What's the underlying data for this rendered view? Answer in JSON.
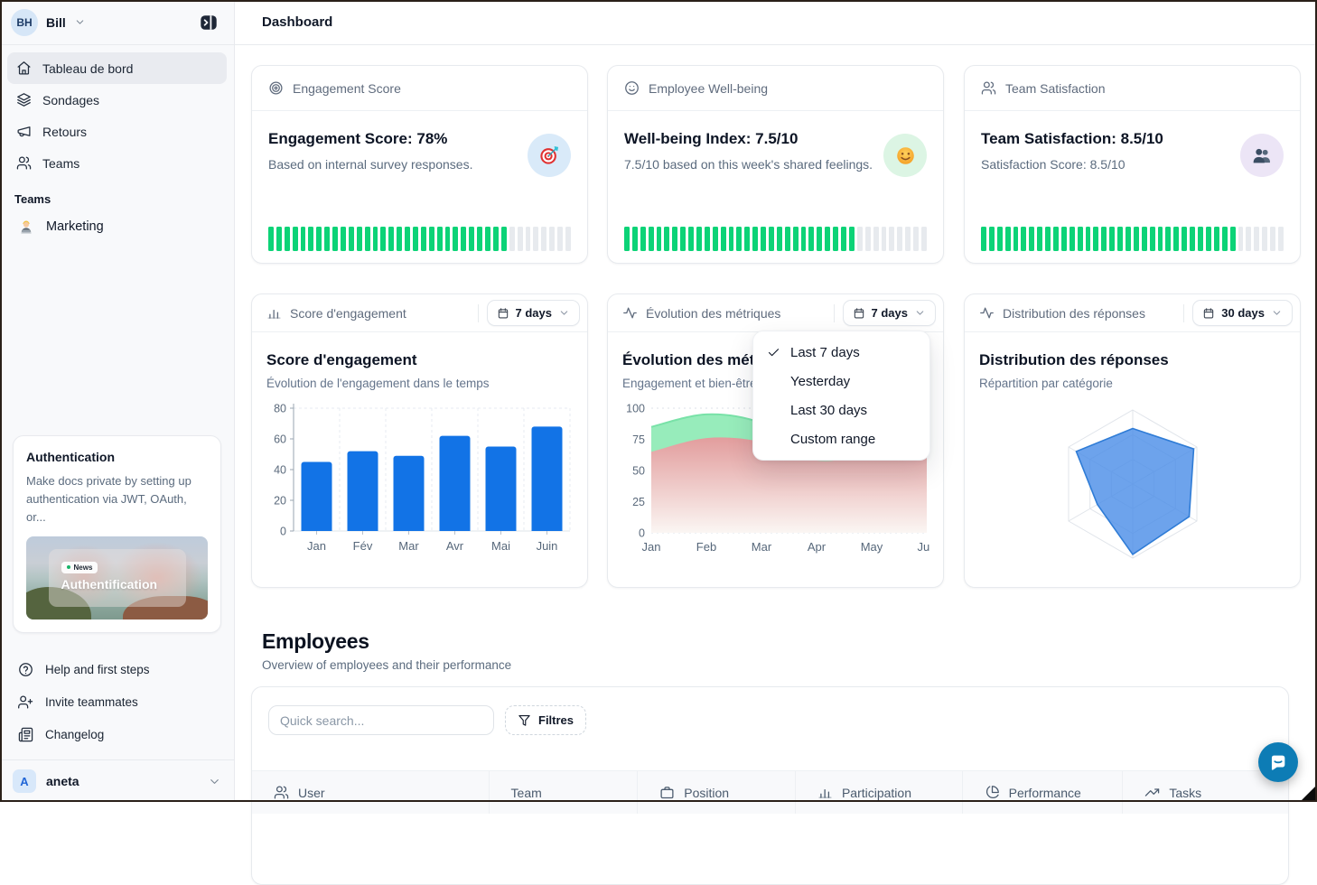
{
  "header": {
    "title": "Dashboard"
  },
  "sidebar": {
    "user": {
      "initials": "BH",
      "name": "Bill"
    },
    "nav": [
      {
        "label": "Tableau de bord",
        "icon": "home",
        "active": true
      },
      {
        "label": "Sondages",
        "icon": "layers",
        "active": false
      },
      {
        "label": "Retours",
        "icon": "megaphone",
        "active": false
      },
      {
        "label": "Teams",
        "icon": "users",
        "active": false
      }
    ],
    "teams_section": {
      "label": "Teams",
      "items": [
        {
          "label": "Marketing",
          "icon": "technologist"
        }
      ]
    },
    "promo_card": {
      "title": "Authentication",
      "body": "Make docs private by setting up authentication via JWT, OAuth, or...",
      "image_badge": "News",
      "image_title": "Authentification"
    },
    "footer_nav": [
      {
        "label": "Help and first steps",
        "icon": "help-circle"
      },
      {
        "label": "Invite teammates",
        "icon": "user-plus"
      },
      {
        "label": "Changelog",
        "icon": "newspaper"
      }
    ],
    "workspace": {
      "initial": "A",
      "name": "aneta"
    }
  },
  "stat_cards": [
    {
      "header": "Engagement Score",
      "icon": "target",
      "title": "Engagement Score: 78%",
      "subtitle": "Based on internal survey responses.",
      "emoji": "target-emoji",
      "emoji_bg": "#d9eaf9",
      "progress_pct": 78
    },
    {
      "header": "Employee Well-being",
      "icon": "smile",
      "title": "Well-being Index: 7.5/10",
      "subtitle": "7.5/10 based on this week's shared feelings.",
      "emoji": "smile-emoji",
      "emoji_bg": "#dcf5e4",
      "progress_pct": 75
    },
    {
      "header": "Team Satisfaction",
      "icon": "users",
      "title": "Team Satisfaction: 8.5/10",
      "subtitle": "Satisfaction Score: 8.5/10",
      "emoji": "busts-emoji",
      "emoji_bg": "#ece5f6",
      "progress_pct": 85
    }
  ],
  "chart_cards": [
    {
      "header": "Score d'engagement",
      "icon": "bar-cols",
      "range_label": "7 days",
      "title": "Score d'engagement",
      "subtitle": "Évolution de l'engagement dans le temps"
    },
    {
      "header": "Évolution des métriques",
      "icon": "activity",
      "range_label": "7 days",
      "title": "Évolution des métriques",
      "subtitle": "Engagement et bien-être"
    },
    {
      "header": "Distribution des réponses",
      "icon": "activity",
      "range_label": "30 days",
      "title": "Distribution des réponses",
      "subtitle": "Répartition par catégorie"
    }
  ],
  "range_menu": {
    "items": [
      {
        "label": "Last 7 days",
        "selected": true
      },
      {
        "label": "Yesterday",
        "selected": false
      },
      {
        "label": "Last 30 days",
        "selected": false
      },
      {
        "label": "Custom range",
        "selected": false
      }
    ]
  },
  "employees": {
    "title": "Employees",
    "subtitle": "Overview of employees and their performance",
    "search_placeholder": "Quick search...",
    "filters_label": "Filtres",
    "columns": [
      {
        "label": "User",
        "icon": "users"
      },
      {
        "label": "Team",
        "icon": ""
      },
      {
        "label": "Position",
        "icon": "briefcase"
      },
      {
        "label": "Participation",
        "icon": "bar-cols"
      },
      {
        "label": "Performance",
        "icon": "pie"
      },
      {
        "label": "Tasks",
        "icon": "trend-up"
      }
    ]
  },
  "chart_data": [
    {
      "type": "bar",
      "title": "Score d'engagement",
      "subtitle": "Évolution de l'engagement dans le temps",
      "categories": [
        "Jan",
        "Fév",
        "Mar",
        "Avr",
        "Mai",
        "Juin"
      ],
      "values": [
        45,
        52,
        49,
        62,
        55,
        68
      ],
      "ylim": [
        0,
        80
      ],
      "yticks": [
        0,
        20,
        40,
        60,
        80
      ],
      "color": "#1273e6",
      "grid": "dashed"
    },
    {
      "type": "area",
      "title": "Évolution des métriques",
      "subtitle": "Engagement et bien-être",
      "x": [
        "Jan",
        "Feb",
        "Mar",
        "Apr",
        "May",
        "Jun"
      ],
      "series": [
        {
          "name": "engagement",
          "values": [
            85,
            95,
            88,
            62,
            66,
            67
          ],
          "fill": "#97ecbb",
          "stroke": "#79e2a8"
        },
        {
          "name": "bien-être",
          "values": [
            65,
            76,
            73,
            58,
            62,
            64
          ],
          "fill_top": "#e29d9d",
          "fill_bottom": "#fbf6f3"
        }
      ],
      "ylim": [
        0,
        100
      ],
      "yticks": [
        0,
        25,
        50,
        75,
        100
      ]
    },
    {
      "type": "radar",
      "title": "Distribution des réponses",
      "subtitle": "Répartition par catégorie",
      "axes": 6,
      "values": [
        75,
        95,
        88,
        95,
        55,
        88
      ],
      "max": 100,
      "fill": "#4d8fe8",
      "fill_opacity": 0.82,
      "stroke": "#2f7cd6"
    }
  ],
  "colors": {
    "accent_blue": "#1273e6",
    "progress_green": "#0cd377",
    "progress_track": "#e7eaee",
    "sidebar_bg": "#f8f9fb",
    "card_border": "#e7eaee",
    "chat_blue": "#0d7cb5"
  }
}
